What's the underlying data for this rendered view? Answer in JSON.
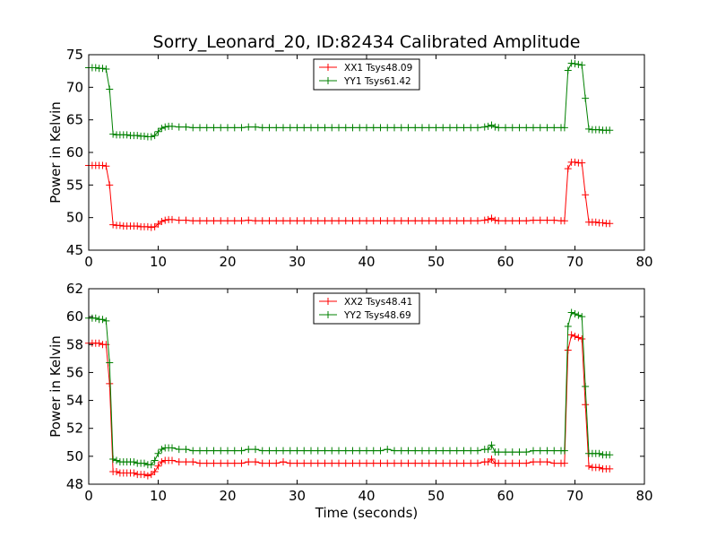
{
  "colors": {
    "xx": "#ff0000",
    "yy": "#008000",
    "axis": "#000000",
    "background": "#ffffff"
  },
  "title": "Sorry_Leonard_20, ID:82434 Calibrated Amplitude",
  "chart_data": [
    {
      "type": "line",
      "title": "Sorry_Leonard_20, ID:82434 Calibrated Amplitude",
      "xlabel": "",
      "ylabel": "Power in Kelvin",
      "xlim": [
        0,
        80
      ],
      "ylim": [
        45,
        75
      ],
      "xticks": [
        0,
        10,
        20,
        30,
        40,
        50,
        60,
        70,
        80
      ],
      "yticks": [
        45,
        50,
        55,
        60,
        65,
        70,
        75
      ],
      "grid": false,
      "legend_position": "top-center",
      "marker": "plus",
      "series": [
        {
          "name": "XX1 Tsys48.09",
          "color": "#ff0000",
          "x": [
            0,
            0.5,
            1,
            1.5,
            2,
            2.5,
            3,
            3.5,
            4,
            4.5,
            5,
            5.5,
            6,
            6.5,
            7,
            7.5,
            8,
            8.5,
            9,
            9.5,
            10,
            10.5,
            11,
            11.5,
            12,
            13,
            14,
            15,
            16,
            17,
            18,
            19,
            20,
            21,
            22,
            23,
            24,
            25,
            26,
            27,
            28,
            29,
            30,
            31,
            32,
            33,
            34,
            35,
            36,
            37,
            38,
            39,
            40,
            41,
            42,
            43,
            44,
            45,
            46,
            47,
            48,
            49,
            50,
            51,
            52,
            53,
            54,
            55,
            56,
            57,
            57.5,
            58,
            58.5,
            59,
            60,
            61,
            62,
            63,
            64,
            65,
            66,
            67,
            68,
            68.5,
            69,
            69.5,
            70,
            70.5,
            71,
            71.5,
            72,
            72.5,
            73,
            73.5,
            74,
            74.5,
            75
          ],
          "y": [
            58.0,
            58.0,
            58.0,
            58.0,
            58.0,
            57.9,
            55.0,
            48.9,
            48.8,
            48.8,
            48.7,
            48.7,
            48.7,
            48.7,
            48.7,
            48.6,
            48.6,
            48.6,
            48.5,
            48.6,
            49.0,
            49.4,
            49.6,
            49.7,
            49.7,
            49.6,
            49.6,
            49.5,
            49.5,
            49.5,
            49.5,
            49.5,
            49.5,
            49.5,
            49.5,
            49.6,
            49.5,
            49.5,
            49.5,
            49.5,
            49.5,
            49.5,
            49.5,
            49.5,
            49.5,
            49.5,
            49.5,
            49.5,
            49.5,
            49.5,
            49.5,
            49.5,
            49.5,
            49.5,
            49.5,
            49.5,
            49.5,
            49.5,
            49.5,
            49.5,
            49.5,
            49.5,
            49.5,
            49.5,
            49.5,
            49.5,
            49.5,
            49.5,
            49.5,
            49.6,
            49.7,
            49.9,
            49.6,
            49.5,
            49.5,
            49.5,
            49.5,
            49.5,
            49.6,
            49.6,
            49.6,
            49.6,
            49.5,
            49.5,
            57.5,
            58.5,
            58.5,
            58.4,
            58.4,
            53.5,
            49.3,
            49.3,
            49.3,
            49.2,
            49.2,
            49.1,
            49.1
          ]
        },
        {
          "name": "YY1 Tsys61.42",
          "color": "#008000",
          "x": [
            0,
            0.5,
            1,
            1.5,
            2,
            2.5,
            3,
            3.5,
            4,
            4.5,
            5,
            5.5,
            6,
            6.5,
            7,
            7.5,
            8,
            8.5,
            9,
            9.5,
            10,
            10.5,
            11,
            11.5,
            12,
            13,
            14,
            15,
            16,
            17,
            18,
            19,
            20,
            21,
            22,
            23,
            24,
            25,
            26,
            27,
            28,
            29,
            30,
            31,
            32,
            33,
            34,
            35,
            36,
            37,
            38,
            39,
            40,
            41,
            42,
            43,
            44,
            45,
            46,
            47,
            48,
            49,
            50,
            51,
            52,
            53,
            54,
            55,
            56,
            57,
            57.5,
            58,
            58.5,
            59,
            60,
            61,
            62,
            63,
            64,
            65,
            66,
            67,
            68,
            68.5,
            69,
            69.5,
            70,
            70.5,
            71,
            71.5,
            72,
            72.5,
            73,
            73.5,
            74,
            74.5,
            75
          ],
          "y": [
            73.0,
            73.0,
            73.0,
            72.9,
            72.9,
            72.8,
            69.7,
            62.8,
            62.7,
            62.7,
            62.7,
            62.7,
            62.6,
            62.6,
            62.6,
            62.5,
            62.5,
            62.4,
            62.4,
            62.6,
            63.2,
            63.7,
            63.9,
            64.0,
            64.0,
            63.9,
            63.9,
            63.8,
            63.8,
            63.8,
            63.8,
            63.8,
            63.8,
            63.8,
            63.8,
            63.9,
            63.9,
            63.8,
            63.8,
            63.8,
            63.8,
            63.8,
            63.8,
            63.8,
            63.8,
            63.8,
            63.8,
            63.8,
            63.8,
            63.8,
            63.8,
            63.8,
            63.8,
            63.8,
            63.8,
            63.8,
            63.8,
            63.8,
            63.8,
            63.8,
            63.8,
            63.8,
            63.8,
            63.8,
            63.8,
            63.8,
            63.8,
            63.8,
            63.8,
            63.9,
            64.0,
            64.2,
            63.9,
            63.8,
            63.8,
            63.8,
            63.8,
            63.8,
            63.8,
            63.8,
            63.8,
            63.8,
            63.8,
            63.8,
            72.6,
            73.7,
            73.6,
            73.5,
            73.4,
            68.3,
            63.6,
            63.5,
            63.5,
            63.5,
            63.4,
            63.4,
            63.4
          ]
        }
      ]
    },
    {
      "type": "line",
      "title": "",
      "xlabel": "Time (seconds)",
      "ylabel": "Power in Kelvin",
      "xlim": [
        0,
        80
      ],
      "ylim": [
        48,
        62
      ],
      "xticks": [
        0,
        10,
        20,
        30,
        40,
        50,
        60,
        70,
        80
      ],
      "yticks": [
        48,
        50,
        52,
        54,
        56,
        58,
        60,
        62
      ],
      "grid": false,
      "legend_position": "top-center",
      "marker": "plus",
      "series": [
        {
          "name": "XX2 Tsys48.41",
          "color": "#ff0000",
          "x": [
            0,
            0.5,
            1,
            1.5,
            2,
            2.5,
            3,
            3.5,
            4,
            4.5,
            5,
            5.5,
            6,
            6.5,
            7,
            7.5,
            8,
            8.5,
            9,
            9.5,
            10,
            10.5,
            11,
            11.5,
            12,
            13,
            14,
            15,
            16,
            17,
            18,
            19,
            20,
            21,
            22,
            23,
            24,
            25,
            26,
            27,
            28,
            29,
            30,
            31,
            32,
            33,
            34,
            35,
            36,
            37,
            38,
            39,
            40,
            41,
            42,
            43,
            44,
            45,
            46,
            47,
            48,
            49,
            50,
            51,
            52,
            53,
            54,
            55,
            56,
            57,
            57.5,
            58,
            58.5,
            59,
            60,
            61,
            62,
            63,
            64,
            65,
            66,
            67,
            68,
            68.5,
            69,
            69.5,
            70,
            70.5,
            71,
            71.5,
            72,
            72.5,
            73,
            73.5,
            74,
            74.5,
            75
          ],
          "y": [
            58.1,
            58.1,
            58.1,
            58.1,
            58.0,
            58.0,
            55.2,
            48.9,
            48.9,
            48.8,
            48.8,
            48.8,
            48.8,
            48.8,
            48.7,
            48.7,
            48.7,
            48.6,
            48.7,
            48.9,
            49.3,
            49.6,
            49.7,
            49.7,
            49.7,
            49.6,
            49.6,
            49.6,
            49.5,
            49.5,
            49.5,
            49.5,
            49.5,
            49.5,
            49.5,
            49.6,
            49.6,
            49.5,
            49.5,
            49.5,
            49.6,
            49.5,
            49.5,
            49.5,
            49.5,
            49.5,
            49.5,
            49.5,
            49.5,
            49.5,
            49.5,
            49.5,
            49.5,
            49.5,
            49.5,
            49.5,
            49.5,
            49.5,
            49.5,
            49.5,
            49.5,
            49.5,
            49.5,
            49.5,
            49.5,
            49.5,
            49.5,
            49.5,
            49.5,
            49.6,
            49.6,
            49.8,
            49.5,
            49.5,
            49.5,
            49.5,
            49.5,
            49.5,
            49.6,
            49.6,
            49.6,
            49.5,
            49.5,
            49.5,
            57.6,
            58.7,
            58.6,
            58.5,
            58.4,
            53.7,
            49.3,
            49.2,
            49.2,
            49.2,
            49.1,
            49.1,
            49.1
          ]
        },
        {
          "name": "YY2 Tsys48.69",
          "color": "#008000",
          "x": [
            0,
            0.5,
            1,
            1.5,
            2,
            2.5,
            3,
            3.5,
            4,
            4.5,
            5,
            5.5,
            6,
            6.5,
            7,
            7.5,
            8,
            8.5,
            9,
            9.5,
            10,
            10.5,
            11,
            11.5,
            12,
            13,
            14,
            15,
            16,
            17,
            18,
            19,
            20,
            21,
            22,
            23,
            24,
            25,
            26,
            27,
            28,
            29,
            30,
            31,
            32,
            33,
            34,
            35,
            36,
            37,
            38,
            39,
            40,
            41,
            42,
            43,
            44,
            45,
            46,
            47,
            48,
            49,
            50,
            51,
            52,
            53,
            54,
            55,
            56,
            57,
            57.5,
            58,
            58.5,
            59,
            60,
            61,
            62,
            63,
            64,
            65,
            66,
            67,
            68,
            68.5,
            69,
            69.5,
            70,
            70.5,
            71,
            71.5,
            72,
            72.5,
            73,
            73.5,
            74,
            74.5,
            75
          ],
          "y": [
            59.9,
            59.9,
            59.9,
            59.8,
            59.8,
            59.7,
            56.7,
            49.8,
            49.7,
            49.6,
            49.6,
            49.6,
            49.6,
            49.6,
            49.5,
            49.5,
            49.5,
            49.4,
            49.4,
            49.7,
            50.2,
            50.5,
            50.6,
            50.6,
            50.6,
            50.5,
            50.5,
            50.4,
            50.4,
            50.4,
            50.4,
            50.4,
            50.4,
            50.4,
            50.4,
            50.5,
            50.5,
            50.4,
            50.4,
            50.4,
            50.4,
            50.4,
            50.4,
            50.4,
            50.4,
            50.4,
            50.4,
            50.4,
            50.4,
            50.4,
            50.4,
            50.4,
            50.4,
            50.4,
            50.4,
            50.5,
            50.4,
            50.4,
            50.4,
            50.4,
            50.4,
            50.4,
            50.4,
            50.4,
            50.4,
            50.4,
            50.4,
            50.4,
            50.4,
            50.5,
            50.5,
            50.8,
            50.3,
            50.3,
            50.3,
            50.3,
            50.3,
            50.3,
            50.4,
            50.4,
            50.4,
            50.4,
            50.4,
            50.4,
            59.3,
            60.3,
            60.2,
            60.1,
            60.0,
            55.0,
            50.2,
            50.2,
            50.2,
            50.2,
            50.1,
            50.1,
            50.1
          ]
        }
      ]
    }
  ]
}
